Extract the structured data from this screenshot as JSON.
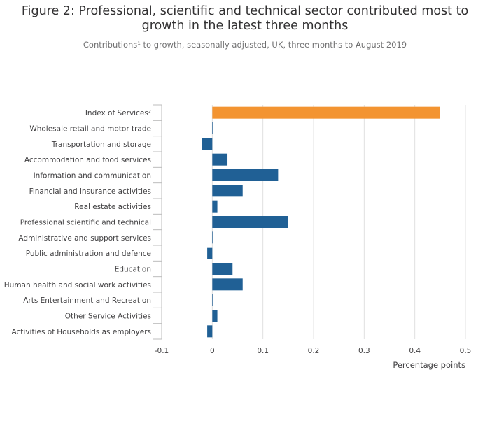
{
  "chart_data": {
    "type": "bar",
    "orientation": "horizontal",
    "title": "Figure 2: Professional, scientific and technical sector contributed most to growth in the latest three months",
    "subtitle": "Contributions¹ to growth, seasonally adjusted, UK, three months to August 2019",
    "xlabel": "Percentage points",
    "ylabel": "",
    "xlim": [
      -0.1,
      0.5
    ],
    "xticks": [
      -0.1,
      0,
      0.1,
      0.2,
      0.3,
      0.4,
      0.5
    ],
    "xtick_labels": [
      "-0.1",
      "0",
      "0.1",
      "0.2",
      "0.3",
      "0.4",
      "0.5"
    ],
    "grid": true,
    "categories": [
      "Index of Services²",
      "Wholesale retail and motor trade",
      "Transportation and storage",
      "Accommodation and food services",
      "Information and communication",
      "Financial and insurance activities",
      "Real estate activities",
      "Professional scientific and technical",
      "Administrative and support services",
      "Public administration and defence",
      "Education",
      "Human health and social work activities",
      "Arts Entertainment and Recreation",
      "Other Service Activities",
      "Activities of Households as employers"
    ],
    "values": [
      0.45,
      0.0,
      -0.02,
      0.03,
      0.13,
      0.06,
      0.01,
      0.15,
      0.0,
      -0.01,
      0.04,
      0.06,
      0.0,
      0.01,
      -0.01
    ],
    "highlight_index": 0,
    "colors": {
      "highlight": "#f39431",
      "bar": "#206095",
      "grid": "#e0e0e0",
      "axis": "#bcbcbc"
    }
  }
}
